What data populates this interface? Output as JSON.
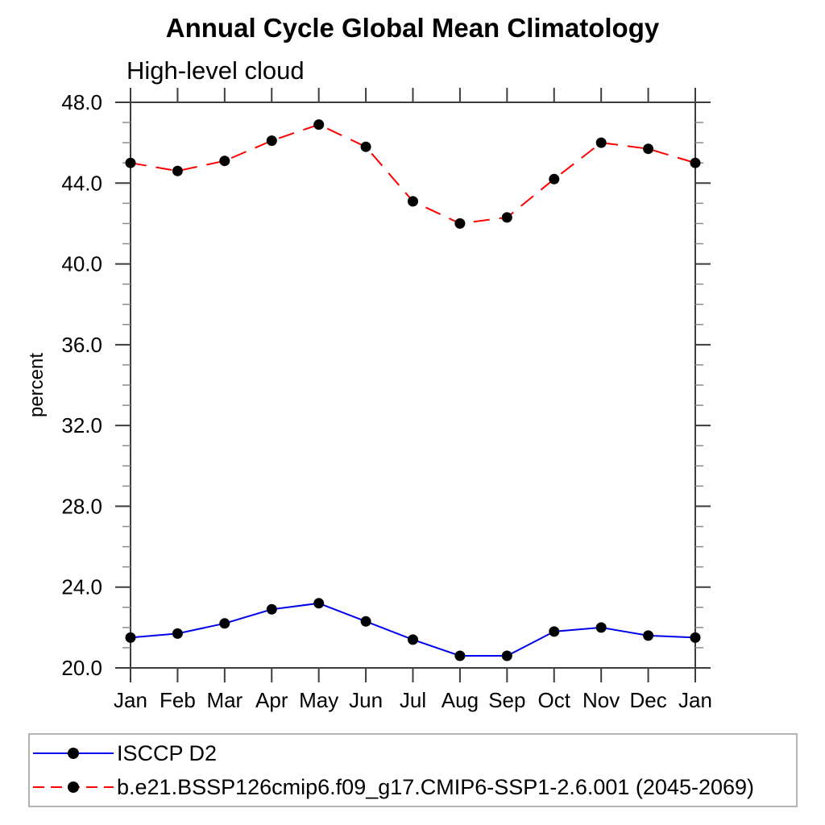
{
  "chart_data": {
    "type": "line",
    "title": "Annual Cycle Global Mean Climatology",
    "subtitle": "High-level cloud",
    "ylabel": "percent",
    "xlabel": "",
    "categories": [
      "Jan",
      "Feb",
      "Mar",
      "Apr",
      "May",
      "Jun",
      "Jul",
      "Aug",
      "Sep",
      "Oct",
      "Nov",
      "Dec",
      "Jan"
    ],
    "ylim": [
      20.0,
      48.0
    ],
    "y_major_step": 4.0,
    "y_minor_step": 1.0,
    "y_tick_labels": [
      "20.0",
      "24.0",
      "28.0",
      "32.0",
      "36.0",
      "40.0",
      "44.0",
      "48.0"
    ],
    "grid": false,
    "legend_position": "bottom",
    "colors": {
      "axis": "#3d3d3d",
      "minor_tick": "#8a8a8a",
      "legend_border": "#b4b4b4",
      "marker": "#000000",
      "series_blue": "#0000ee",
      "series_red": "#ff0000"
    },
    "series": [
      {
        "name": "ISCCP D2",
        "color": "#0000ee",
        "line_style": "solid",
        "marker": "circle",
        "marker_color": "#000000",
        "values": [
          21.5,
          21.7,
          22.2,
          22.9,
          23.2,
          22.3,
          21.4,
          20.6,
          20.6,
          21.8,
          22.0,
          21.6,
          21.5
        ]
      },
      {
        "name": "b.e21.BSSP126cmip6.f09_g17.CMIP6-SSP1-2.6.001 (2045-2069)",
        "color": "#ff0000",
        "line_style": "dashed",
        "marker": "circle",
        "marker_color": "#000000",
        "values": [
          45.0,
          44.6,
          45.1,
          46.1,
          46.9,
          45.8,
          43.1,
          42.0,
          42.3,
          44.2,
          46.0,
          45.7,
          45.0
        ]
      }
    ]
  }
}
